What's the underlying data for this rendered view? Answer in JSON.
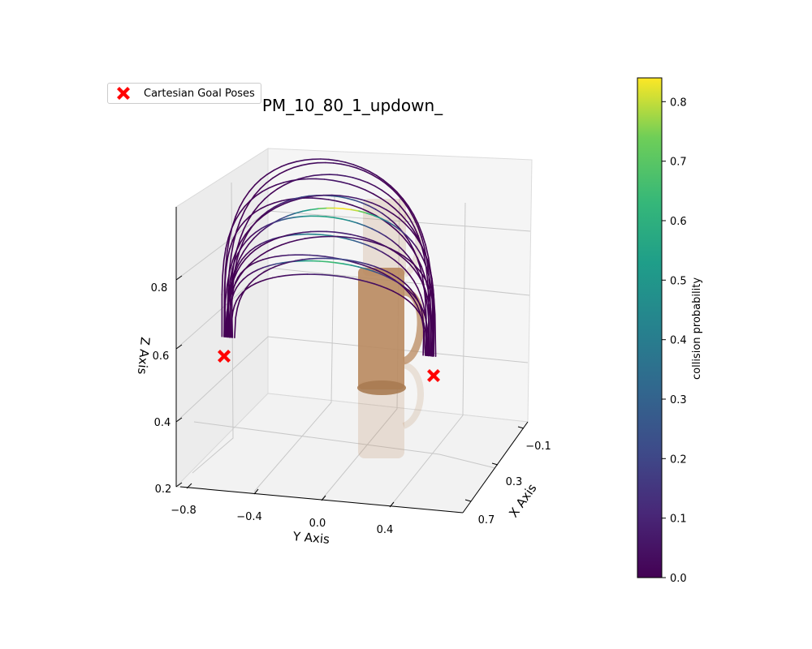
{
  "chart_data": {
    "type": "line",
    "projection": "3d",
    "title": "PM_10_80_1_updown_",
    "xlabel": "X Axis",
    "ylabel": "Y Axis",
    "zlabel": "Z Axis",
    "x_ticks": [
      "−0.1",
      "0.3",
      "0.7"
    ],
    "y_ticks": [
      "−0.8",
      "−0.4",
      "0.0",
      "0.4"
    ],
    "z_ticks": [
      "0.2",
      "0.4",
      "0.6",
      "0.8"
    ],
    "xlim": [
      -0.2,
      0.8
    ],
    "ylim": [
      -0.85,
      0.75
    ],
    "zlim": [
      0.2,
      1.0
    ],
    "grid": true,
    "legend": {
      "entries": [
        "Cartesian Goal Poses"
      ],
      "placement": "top-left"
    },
    "colorbar": {
      "label": "collision probability",
      "colormap": "viridis",
      "range": [
        0.0,
        0.84
      ],
      "ticks": [
        "0.0",
        "0.1",
        "0.2",
        "0.3",
        "0.4",
        "0.5",
        "0.6",
        "0.7",
        "0.8"
      ]
    },
    "goal_poses": [
      {
        "x": 0.3,
        "y": -0.6,
        "z": 0.5
      },
      {
        "x": 0.3,
        "y": 0.6,
        "z": 0.5
      }
    ],
    "trajectories": [
      {
        "peak_z": 0.98,
        "spread": 1.0,
        "x": 0.3,
        "max_collision": 0.05
      },
      {
        "peak_z": 0.96,
        "spread": 0.97,
        "x": 0.22,
        "max_collision": 0.04
      },
      {
        "peak_z": 0.94,
        "spread": 1.02,
        "x": 0.38,
        "max_collision": 0.06
      },
      {
        "peak_z": 0.92,
        "spread": 0.95,
        "x": 0.15,
        "max_collision": 0.07
      },
      {
        "peak_z": 0.9,
        "spread": 0.99,
        "x": 0.45,
        "max_collision": 0.05
      },
      {
        "peak_z": 0.88,
        "spread": 0.93,
        "x": 0.25,
        "max_collision": 0.3
      },
      {
        "peak_z": 0.86,
        "spread": 1.0,
        "x": 0.1,
        "max_collision": 0.08
      },
      {
        "peak_z": 0.84,
        "spread": 0.96,
        "x": 0.35,
        "max_collision": 0.55
      },
      {
        "peak_z": 0.82,
        "spread": 0.98,
        "x": 0.05,
        "max_collision": 0.84
      },
      {
        "peak_z": 0.8,
        "spread": 0.94,
        "x": 0.4,
        "max_collision": 0.45
      },
      {
        "peak_z": 0.78,
        "spread": 0.97,
        "x": 0.2,
        "max_collision": 0.1
      },
      {
        "peak_z": 0.76,
        "spread": 0.92,
        "x": 0.5,
        "max_collision": 0.12
      },
      {
        "peak_z": 0.74,
        "spread": 0.99,
        "x": 0.0,
        "max_collision": 0.06
      },
      {
        "peak_z": 0.72,
        "spread": 0.95,
        "x": 0.32,
        "max_collision": 0.65
      },
      {
        "peak_z": 0.7,
        "spread": 0.9,
        "x": 0.12,
        "max_collision": 0.2
      },
      {
        "peak_z": 0.68,
        "spread": 0.93,
        "x": 0.28,
        "max_collision": 0.09
      }
    ],
    "colors": {
      "goal_marker": "#ff0000",
      "object": "#b98a5f",
      "pane": "#f2f2f2",
      "grid": "#b0b0b0"
    }
  }
}
